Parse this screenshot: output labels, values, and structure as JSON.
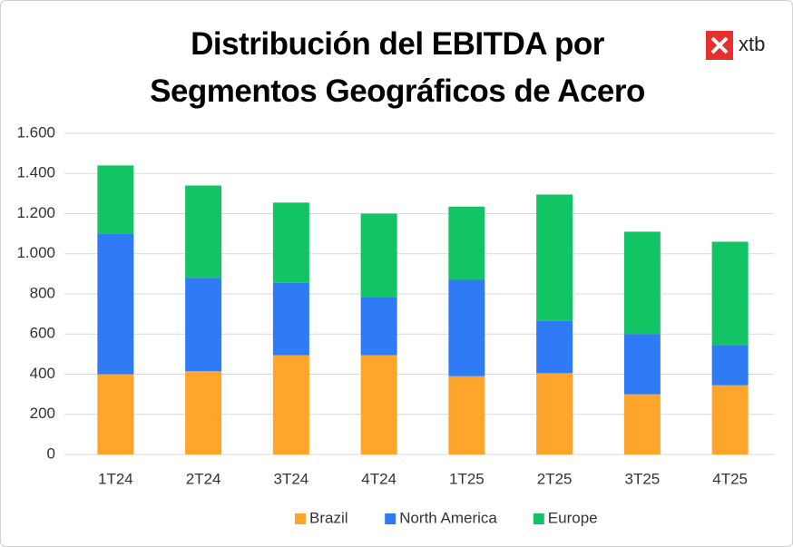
{
  "logo": "xtb",
  "chart_data": {
    "type": "stacked-bar",
    "title": "Distribución del EBITDA por Segmentos Geográficos de Acero",
    "categories": [
      "1T24",
      "2T24",
      "3T24",
      "4T24",
      "1T25",
      "2T25",
      "3T25",
      "4T25"
    ],
    "series": [
      {
        "name": "Brazil",
        "color": "#ffa52c",
        "values": [
          400,
          415,
          495,
          495,
          390,
          405,
          300,
          345
        ]
      },
      {
        "name": "North America",
        "color": "#2f7bf5",
        "values": [
          700,
          465,
          360,
          290,
          480,
          260,
          300,
          200
        ]
      },
      {
        "name": "Europe",
        "color": "#12c463",
        "values": [
          340,
          460,
          400,
          415,
          365,
          630,
          510,
          515
        ]
      }
    ],
    "ylim": [
      0,
      1600
    ],
    "yticks": [
      0,
      200,
      400,
      600,
      800,
      {
        "value": 1000,
        "label": "1.000"
      },
      {
        "value": 1200,
        "label": "1.200"
      },
      {
        "value": 1400,
        "label": "1.400"
      },
      {
        "value": 1600,
        "label": "1.600"
      }
    ],
    "grid": true,
    "legend": "bottom"
  }
}
